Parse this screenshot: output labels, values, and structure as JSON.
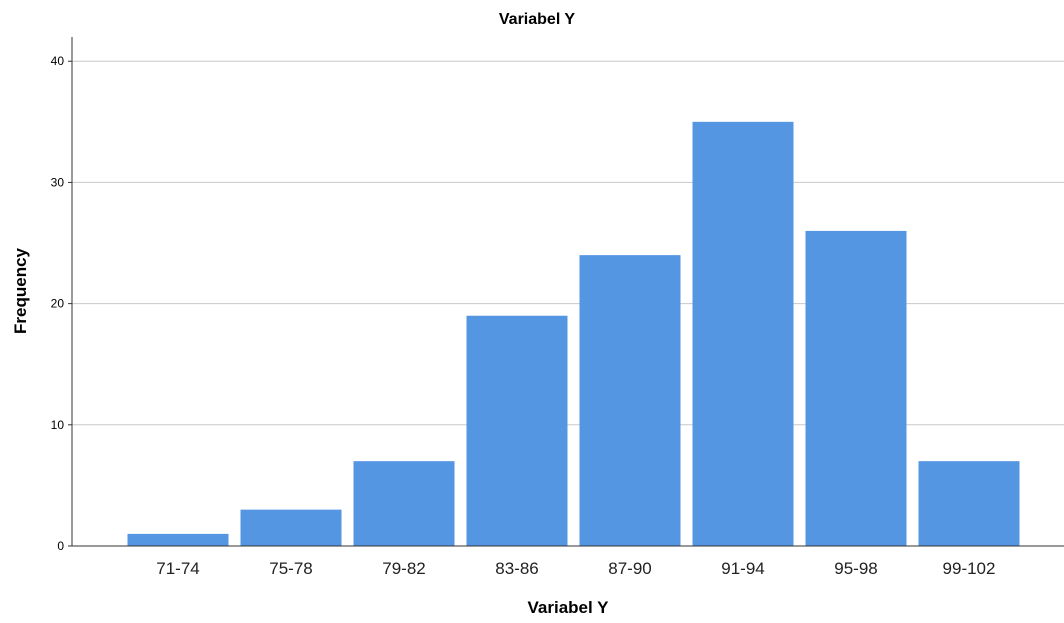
{
  "chart_data": {
    "type": "bar",
    "title": "Variabel Y",
    "xlabel": "Variabel Y",
    "ylabel": "Frequency",
    "categories": [
      "71-74",
      "75-78",
      "79-82",
      "83-86",
      "87-90",
      "91-94",
      "95-98",
      "99-102"
    ],
    "values": [
      1,
      3,
      7,
      19,
      24,
      35,
      26,
      7
    ],
    "ylim": [
      0,
      42
    ],
    "yticks": [
      0,
      10,
      20,
      30,
      40
    ],
    "grid": true,
    "bar_color": "#5596e3",
    "axis_color": "#333333",
    "grid_color": "#c8c8c8"
  }
}
